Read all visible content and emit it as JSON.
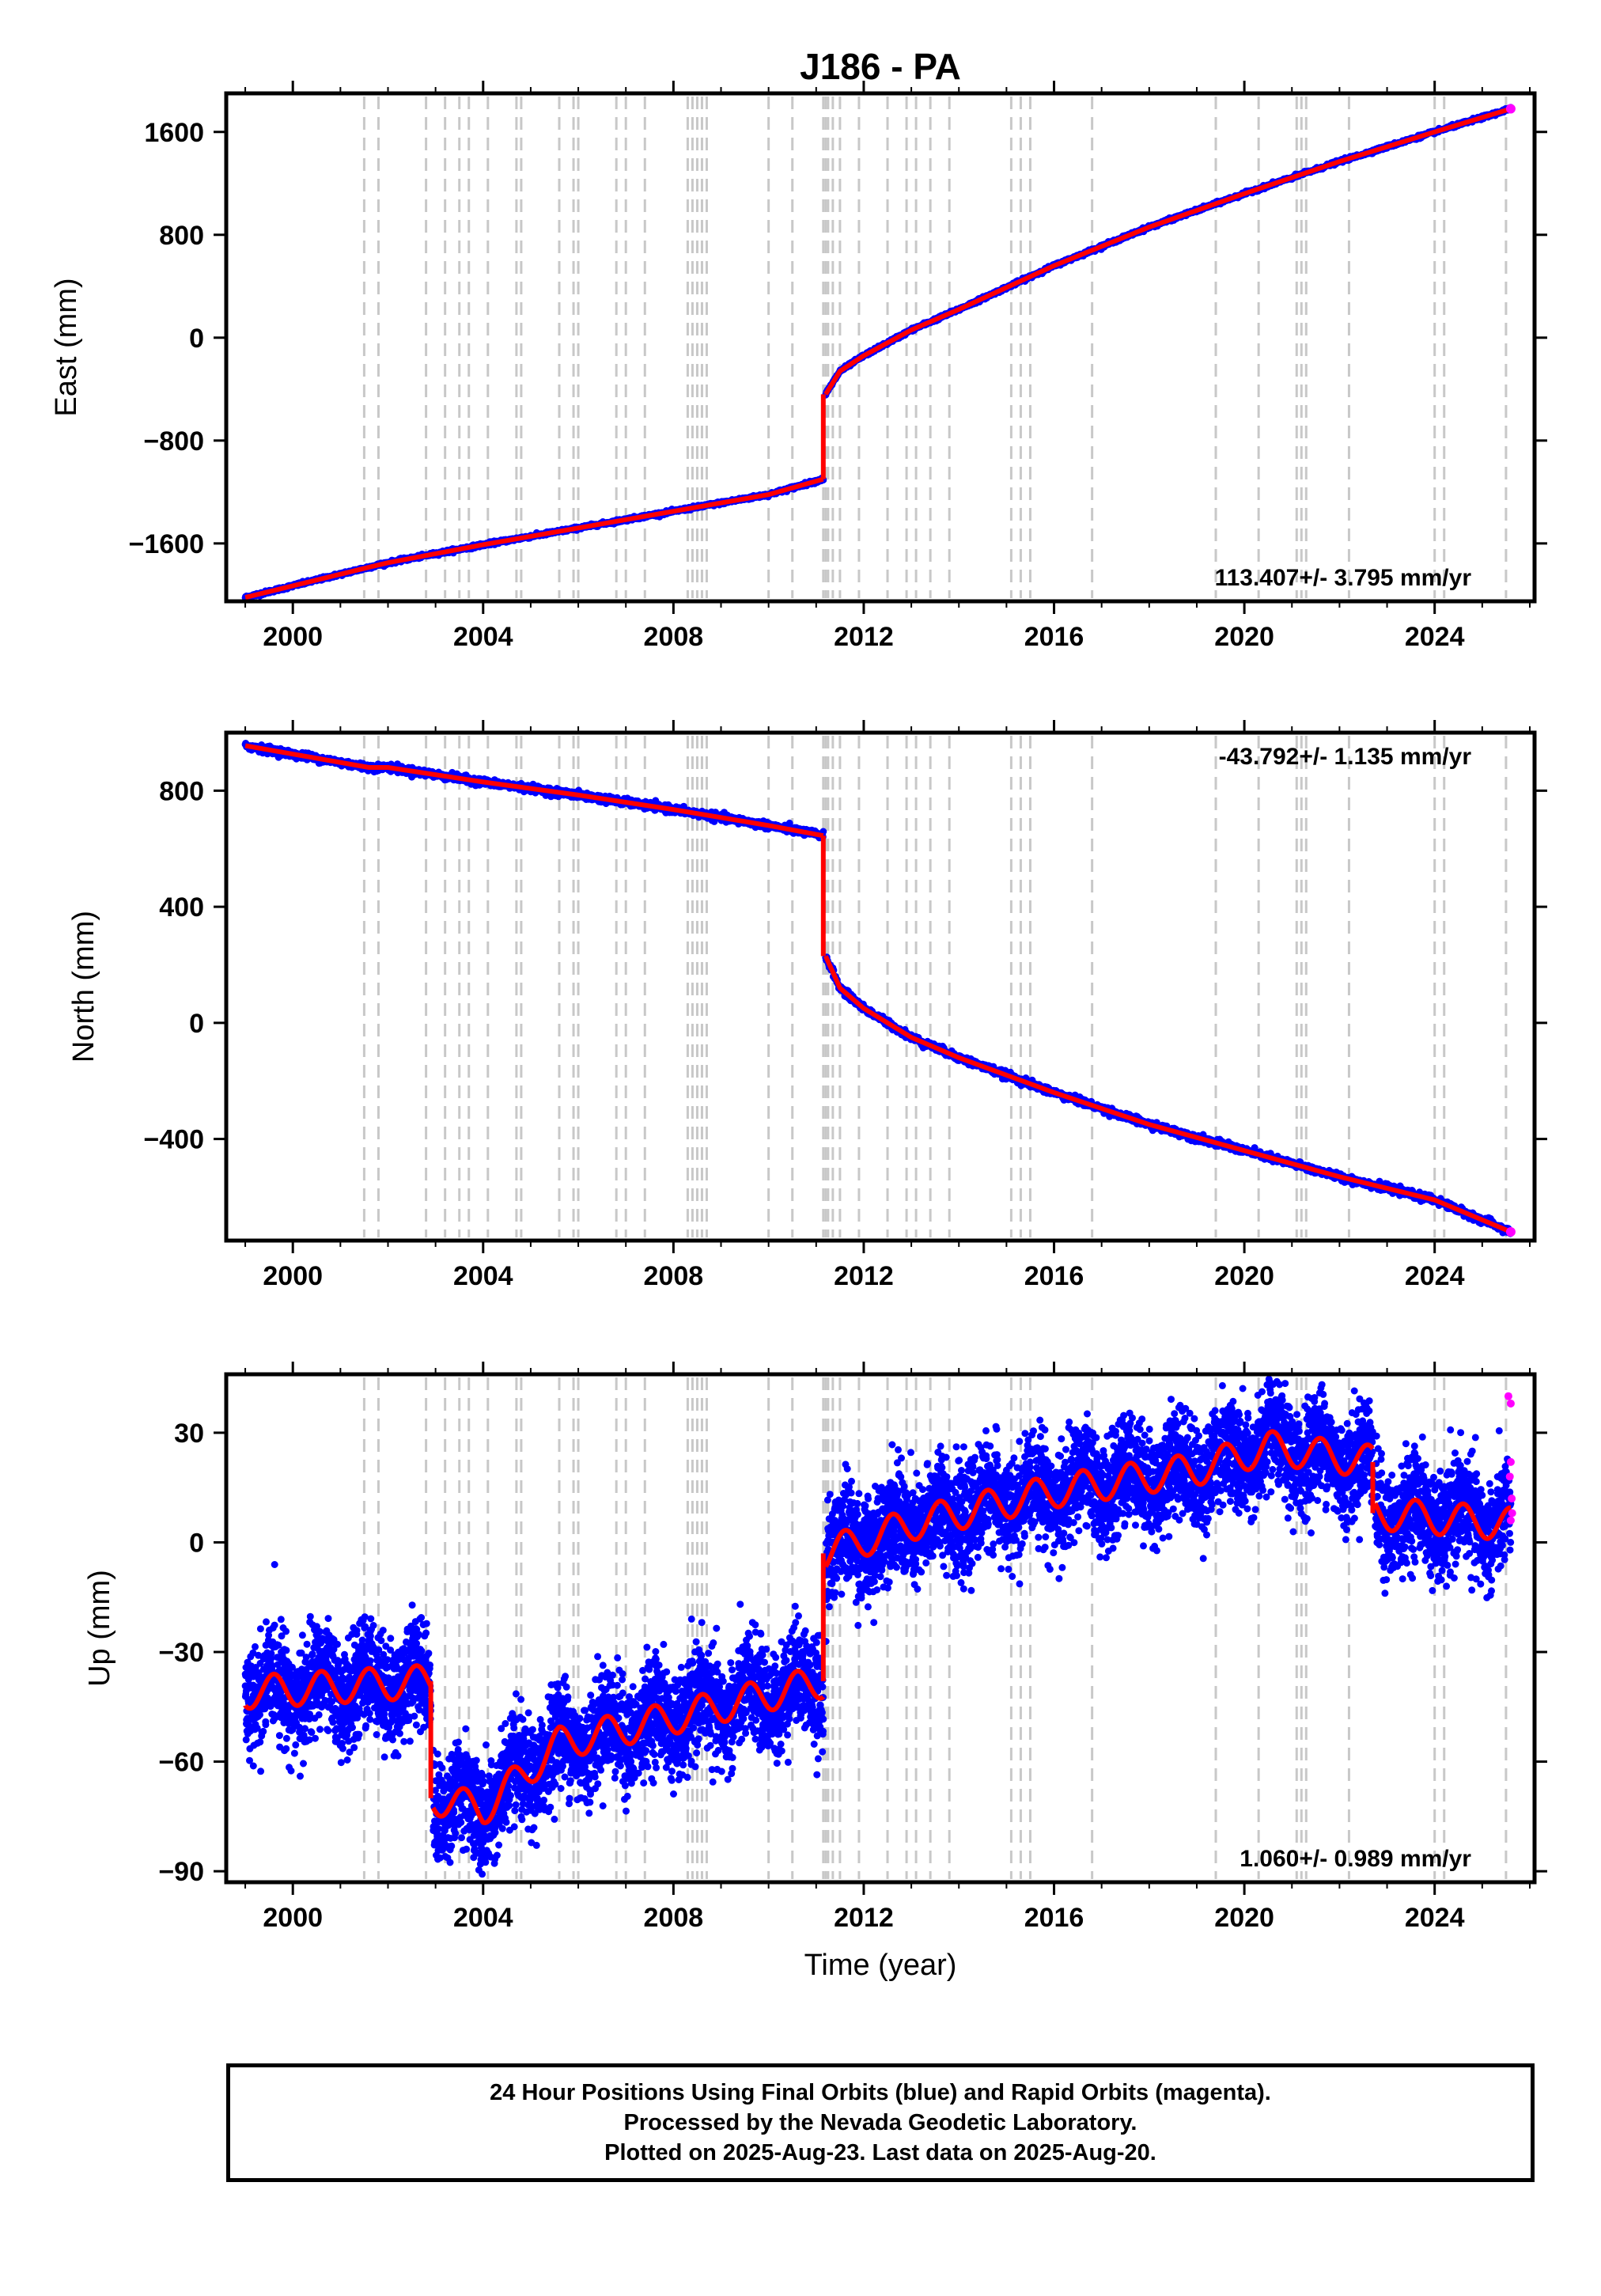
{
  "title": "J186 - PA",
  "colors": {
    "final": "#0000ff",
    "rapid": "#ff00ff",
    "model": "#ff0000",
    "steps": "#c8c8c8",
    "axis": "#000000"
  },
  "xlabel": "Time (year)",
  "footer": {
    "line1": "24 Hour Positions Using Final Orbits (blue) and Rapid Orbits (magenta).",
    "line2": "Processed by the Nevada Geodetic Laboratory.",
    "line3": "Plotted on 2025-Aug-23. Last data on 2025-Aug-20."
  },
  "chart_data": [
    {
      "type": "scatter",
      "ylabel": "East (mm)",
      "xlim": [
        1998.6,
        2026.1
      ],
      "ylim": [
        -2050,
        1900
      ],
      "xticks": [
        2000,
        2004,
        2008,
        2012,
        2016,
        2020,
        2024
      ],
      "yticks": [
        -1600,
        -800,
        0,
        800,
        1600
      ],
      "xtick_labels": [
        "2000",
        "2004",
        "2008",
        "2012",
        "2016",
        "2020",
        "2024"
      ],
      "ytick_labels": [
        "−1600",
        "−800",
        "0",
        "800",
        "1600"
      ],
      "rate": "113.407+/- 3.795 mm/yr",
      "rate_position": "bottom-right",
      "series": [
        {
          "segment": "pre-2011",
          "x": [
            1999.0,
            2001.6,
            2002.0,
            2004.0,
            2006.0,
            2008.0,
            2010.0,
            2011.15
          ],
          "y": [
            -2020,
            -1785,
            -1750,
            -1610,
            -1480,
            -1350,
            -1220,
            -1100
          ]
        },
        {
          "segment": "post-2011",
          "x": [
            2011.2,
            2011.5,
            2012.0,
            2013.0,
            2014.0,
            2016.0,
            2018.0,
            2020.0,
            2022.0,
            2024.0,
            2025.6
          ],
          "y": [
            -440,
            -260,
            -140,
            60,
            220,
            560,
            860,
            1120,
            1370,
            1600,
            1780
          ]
        }
      ]
    },
    {
      "type": "scatter",
      "ylabel": "North (mm)",
      "xlim": [
        1998.6,
        2026.1
      ],
      "ylim": [
        -750,
        1000
      ],
      "xticks": [
        2000,
        2004,
        2008,
        2012,
        2016,
        2020,
        2024
      ],
      "yticks": [
        -400,
        0,
        400,
        800
      ],
      "xtick_labels": [
        "2000",
        "2004",
        "2008",
        "2012",
        "2016",
        "2020",
        "2024"
      ],
      "ytick_labels": [
        "−400",
        "0",
        "400",
        "800"
      ],
      "rate": "-43.792+/- 1.135 mm/yr",
      "rate_position": "top-right",
      "series": [
        {
          "segment": "pre-2011",
          "x": [
            1999.0,
            2001.6,
            2002.0,
            2004.0,
            2006.0,
            2008.0,
            2010.0,
            2011.15
          ],
          "y": [
            955,
            880,
            880,
            830,
            785,
            735,
            680,
            645
          ]
        },
        {
          "segment": "post-2011",
          "x": [
            2011.2,
            2011.5,
            2012.0,
            2013.0,
            2014.0,
            2016.0,
            2018.0,
            2020.0,
            2022.0,
            2024.0,
            2025.6
          ],
          "y": [
            230,
            120,
            50,
            -50,
            -120,
            -240,
            -350,
            -440,
            -530,
            -610,
            -720
          ]
        }
      ]
    },
    {
      "type": "scatter",
      "ylabel": "Up (mm)",
      "xlim": [
        1998.6,
        2026.1
      ],
      "ylim": [
        -93,
        46
      ],
      "xticks": [
        2000,
        2004,
        2008,
        2012,
        2016,
        2020,
        2024
      ],
      "yticks": [
        -90,
        -60,
        -30,
        0,
        30
      ],
      "xtick_labels": [
        "2000",
        "2004",
        "2008",
        "2012",
        "2016",
        "2020",
        "2024"
      ],
      "ytick_labels": [
        "−90",
        "−60",
        "−30",
        "0",
        "30"
      ],
      "rate": "1.060+/- 0.989 mm/yr",
      "rate_position": "bottom-right",
      "seasonal_amplitude_mm": 4.5,
      "noise_mm": 7,
      "series": [
        {
          "segment": "1999-2002",
          "x": [
            1999.0,
            2002.9
          ],
          "y": [
            -41,
            -38
          ]
        },
        {
          "segment": "2003-2011",
          "x": [
            2002.95,
            2004.0,
            2005.6,
            2008.0,
            2011.15
          ],
          "y": [
            -70,
            -73,
            -55,
            -48,
            -38
          ]
        },
        {
          "segment": "2011-2022",
          "x": [
            2011.2,
            2013.0,
            2016.0,
            2019.0,
            2020.5,
            2022.7
          ],
          "y": [
            -3,
            5,
            14,
            20,
            26,
            22
          ]
        },
        {
          "segment": "2022-2025",
          "x": [
            2022.75,
            2025.6
          ],
          "y": [
            8,
            5
          ]
        }
      ],
      "rapid_points": {
        "x": [
          2025.55,
          2025.6,
          2025.62,
          2025.58,
          2025.6,
          2025.63,
          2025.6
        ],
        "y": [
          40,
          38,
          12,
          18,
          22,
          8,
          6
        ]
      }
    }
  ],
  "step_lines": [
    2001.5,
    2001.8,
    2002.8,
    2003.2,
    2003.5,
    2003.7,
    2004.1,
    2004.7,
    2004.8,
    2005.6,
    2005.9,
    2006.0,
    2006.8,
    2007.0,
    2007.4,
    2008.3,
    2008.4,
    2008.5,
    2008.6,
    2008.7,
    2010.0,
    2010.5,
    2011.15,
    2011.2,
    2011.25,
    2011.35,
    2011.5,
    2011.9,
    2012.5,
    2012.9,
    2013.1,
    2013.4,
    2013.8,
    2015.1,
    2015.3,
    2015.5,
    2016.8,
    2019.4,
    2020.3,
    2021.1,
    2021.2,
    2021.3,
    2022.2,
    2024.0,
    2024.2,
    2025.5
  ]
}
